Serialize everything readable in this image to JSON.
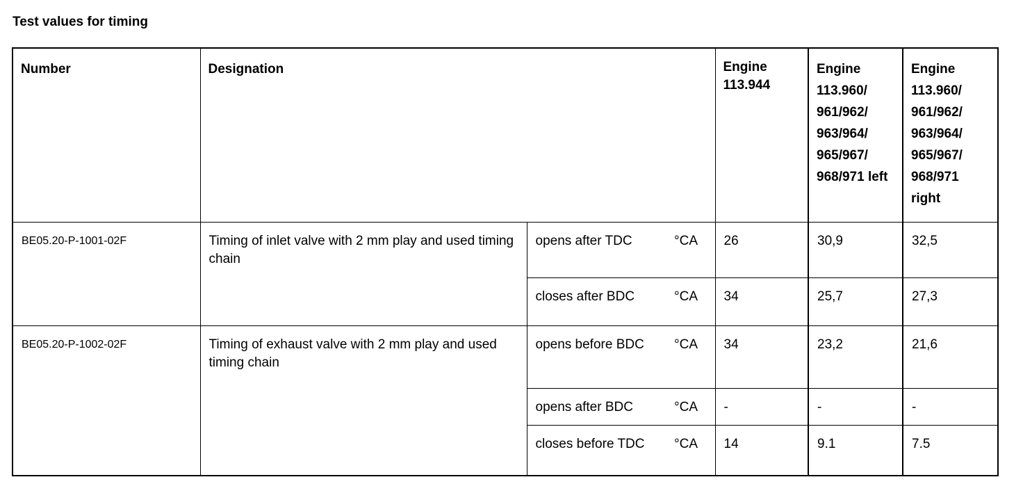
{
  "title": "Test values for timing",
  "headers": {
    "number": "Number",
    "designation": "Designation",
    "engine1": "Engine 113.944",
    "engine2": "Engine 113.960/ 961/962/ 963/964/ 965/967/ 968/971 left",
    "engine3": "Engine 113.960/ 961/962/ 963/964/ 965/967/ 968/971 right"
  },
  "groups": [
    {
      "number": "BE05.20-P-1001-02F",
      "designation": "Timing of inlet valve with 2 mm play and used timing chain",
      "rows": [
        {
          "condition": "opens after TDC",
          "unit": "°CA",
          "e1": "26",
          "e2": "30,9",
          "e3": "32,5"
        },
        {
          "condition": "closes after BDC",
          "unit": "°CA",
          "e1": "34",
          "e2": "25,7",
          "e3": "27,3"
        }
      ]
    },
    {
      "number": "BE05.20-P-1002-02F",
      "designation": "Timing of exhaust valve with 2 mm play and used timing chain",
      "rows": [
        {
          "condition": "opens before BDC",
          "unit": "°CA",
          "e1": "34",
          "e2": "23,2",
          "e3": "21,6"
        },
        {
          "condition": "opens after BDC",
          "unit": "°CA",
          "e1": "-",
          "e2": "-",
          "e3": "-"
        },
        {
          "condition": "closes before TDC",
          "unit": "°CA",
          "e1": "14",
          "e2": "9.1",
          "e3": "7.5"
        }
      ]
    }
  ]
}
